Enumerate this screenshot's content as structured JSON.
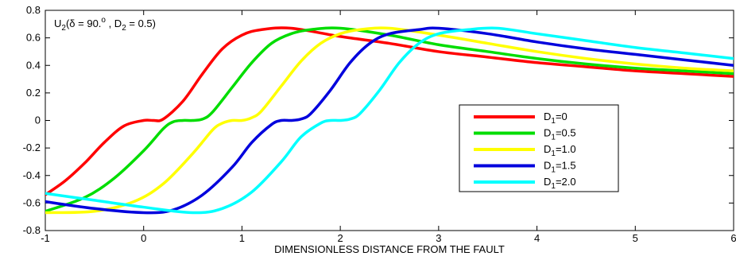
{
  "chart_data": {
    "type": "line",
    "title_annotation": {
      "main": "U",
      "sub": "2",
      "rest": "(δ = 90.",
      "sup": "o",
      "tail": " , D",
      "sub2": "2",
      "end": " = 0.5)"
    },
    "xlabel": "DIMENSIONLESS DISTANCE FROM THE FAULT",
    "ylabel": "",
    "xlim": [
      -1,
      6
    ],
    "ylim": [
      -0.8,
      0.8
    ],
    "xticks": [
      -1,
      0,
      1,
      2,
      3,
      4,
      5,
      6
    ],
    "yticks": [
      -0.8,
      -0.6,
      -0.4,
      -0.2,
      0,
      0.2,
      0.4,
      0.6,
      0.8
    ],
    "ytick_labels": [
      "-0.8",
      "-0.6",
      "-0.4",
      "-0.2",
      "0",
      "0.2",
      "0.4",
      "0.6",
      "0.8"
    ],
    "grid": false,
    "legend_position": "center-right",
    "series": [
      {
        "name": "D1=0",
        "label_main": "D",
        "label_sub": "1",
        "label_rest": "=0",
        "color": "#ff0000",
        "x": [
          -1,
          -0.8,
          -0.6,
          -0.4,
          -0.2,
          0,
          0.1,
          0.2,
          0.4,
          0.6,
          0.8,
          1.0,
          1.2,
          1.5,
          2,
          2.5,
          3,
          3.5,
          4,
          4.5,
          5,
          5.5,
          6
        ],
        "y": [
          -0.54,
          -0.44,
          -0.31,
          -0.16,
          -0.04,
          0,
          0.0,
          0.01,
          0.14,
          0.34,
          0.52,
          0.62,
          0.66,
          0.67,
          0.61,
          0.56,
          0.5,
          0.46,
          0.42,
          0.39,
          0.36,
          0.34,
          0.32
        ]
      },
      {
        "name": "D1=0.5",
        "label_main": "D",
        "label_sub": "1",
        "label_rest": "=0.5",
        "color": "#00dd00",
        "x": [
          -1,
          -0.6,
          -0.3,
          0,
          0.2,
          0.3,
          0.4,
          0.5,
          0.6,
          0.7,
          0.9,
          1.1,
          1.3,
          1.5,
          1.7,
          2,
          2.5,
          3,
          3.5,
          4,
          4.5,
          5,
          5.5,
          6
        ],
        "y": [
          -0.66,
          -0.56,
          -0.42,
          -0.22,
          -0.06,
          -0.01,
          0,
          0.0,
          0.01,
          0.06,
          0.24,
          0.42,
          0.56,
          0.63,
          0.66,
          0.67,
          0.62,
          0.55,
          0.5,
          0.45,
          0.41,
          0.38,
          0.36,
          0.34
        ]
      },
      {
        "name": "D1=1.0",
        "label_main": "D",
        "label_sub": "1",
        "label_rest": "=1.0",
        "color": "#ffff00",
        "x": [
          -1,
          -0.5,
          -0.1,
          0.2,
          0.5,
          0.7,
          0.8,
          0.9,
          1.0,
          1.1,
          1.2,
          1.4,
          1.6,
          1.8,
          2.0,
          2.2,
          2.5,
          3,
          3.5,
          4,
          4.5,
          5,
          5.5,
          6
        ],
        "y": [
          -0.67,
          -0.66,
          -0.59,
          -0.46,
          -0.24,
          -0.07,
          -0.02,
          0,
          0.0,
          0.02,
          0.07,
          0.25,
          0.43,
          0.56,
          0.63,
          0.66,
          0.67,
          0.62,
          0.56,
          0.5,
          0.45,
          0.41,
          0.38,
          0.36
        ]
      },
      {
        "name": "D1=1.5",
        "label_main": "D",
        "label_sub": "1",
        "label_rest": "=1.5",
        "color": "#0000dd",
        "x": [
          -1,
          -0.5,
          0,
          0.3,
          0.6,
          0.9,
          1.1,
          1.3,
          1.4,
          1.5,
          1.6,
          1.7,
          1.9,
          2.1,
          2.3,
          2.5,
          2.8,
          3.0,
          3.5,
          4,
          4.5,
          5,
          5.5,
          6
        ],
        "y": [
          -0.59,
          -0.64,
          -0.67,
          -0.65,
          -0.54,
          -0.34,
          -0.16,
          -0.03,
          0,
          0.0,
          0.01,
          0.05,
          0.22,
          0.42,
          0.56,
          0.63,
          0.66,
          0.67,
          0.63,
          0.57,
          0.52,
          0.48,
          0.44,
          0.4
        ]
      },
      {
        "name": "D1=2.0",
        "label_main": "D",
        "label_sub": "1",
        "label_rest": "=2.0",
        "color": "#00ffff",
        "x": [
          -1,
          -0.5,
          0,
          0.5,
          0.8,
          1.1,
          1.4,
          1.6,
          1.8,
          1.9,
          2.0,
          2.1,
          2.2,
          2.4,
          2.6,
          2.8,
          3.0,
          3.3,
          3.6,
          4,
          4.5,
          5,
          5.5,
          6
        ],
        "y": [
          -0.53,
          -0.58,
          -0.63,
          -0.67,
          -0.64,
          -0.52,
          -0.3,
          -0.12,
          -0.02,
          0,
          0.0,
          0.01,
          0.05,
          0.22,
          0.42,
          0.56,
          0.63,
          0.66,
          0.67,
          0.63,
          0.58,
          0.53,
          0.49,
          0.45
        ]
      }
    ]
  }
}
